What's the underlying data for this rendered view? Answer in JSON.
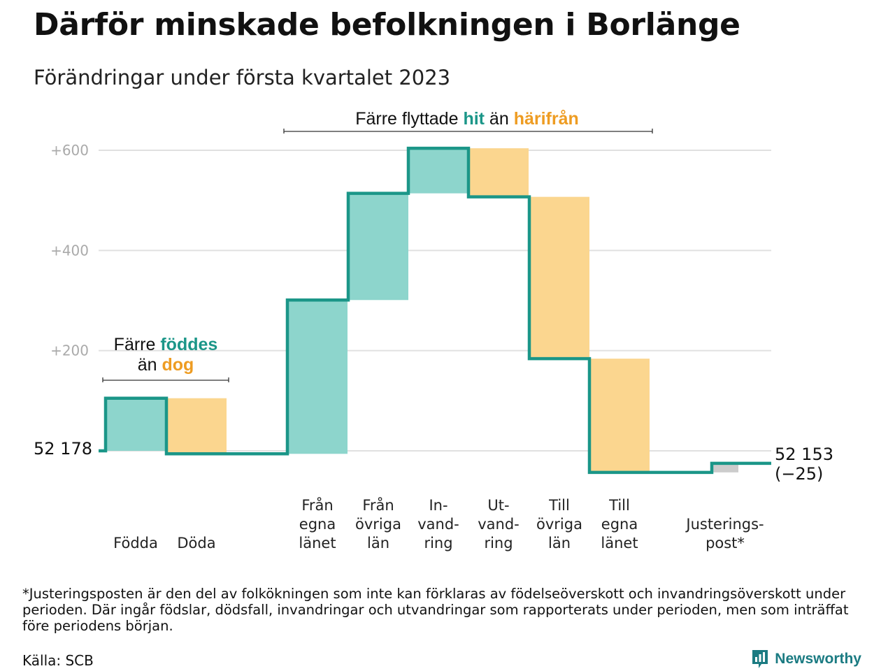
{
  "header": {
    "title": "Därför minskade befolkningen i Borlänge",
    "subtitle": "Förändringar under första kvartalet 2023"
  },
  "chart_data": {
    "type": "waterfall",
    "start": {
      "label": "52 178",
      "value": 52178
    },
    "end": {
      "label_value": "52 153",
      "label_change": "(−25)",
      "value": 52153,
      "change": -25
    },
    "y_ticks": [
      {
        "value": 200,
        "label": "+200"
      },
      {
        "value": 400,
        "label": "+400"
      },
      {
        "value": 600,
        "label": "+600"
      }
    ],
    "ylim": [
      -60,
      630
    ],
    "categories": [
      {
        "lines": [
          "Födda"
        ],
        "change": 105,
        "color": "inflow"
      },
      {
        "lines": [
          "Döda"
        ],
        "change": -111,
        "color": "outflow"
      },
      {
        "lines": [
          "Från",
          "egna",
          "länet"
        ],
        "change": 307,
        "color": "inflow"
      },
      {
        "lines": [
          "Från",
          "övriga",
          "län"
        ],
        "change": 213,
        "color": "inflow"
      },
      {
        "lines": [
          "In-",
          "vand-",
          "ring"
        ],
        "change": 90,
        "color": "inflow"
      },
      {
        "lines": [
          "Ut-",
          "vand-",
          "ring"
        ],
        "change": -97,
        "color": "outflow"
      },
      {
        "lines": [
          "Till",
          "övriga",
          "län"
        ],
        "change": -323,
        "color": "outflow"
      },
      {
        "lines": [
          "Till",
          "egna",
          "länet"
        ],
        "change": -227,
        "color": "outflow"
      },
      {
        "lines": [
          "Justerings-",
          "post*"
        ],
        "change": 18,
        "color": "adjustment"
      }
    ],
    "annotations": {
      "natural": {
        "line1_pre": "Färre ",
        "line1_hi": "föddes",
        "line2_pre": "än ",
        "line2_hi": "dog"
      },
      "migration": {
        "pre": "Färre flyttade ",
        "hi1": "hit",
        "mid": " än ",
        "hi2": "härifrån"
      }
    },
    "colors": {
      "inflow": "#8dd5cc",
      "outflow": "#fbd68f",
      "adjustment": "#cccccc",
      "line": "#1b9688",
      "inflow_text": "#1b9688",
      "outflow_text": "#ee9c22",
      "grid": "#e0e0e0"
    }
  },
  "footnote": "*Justeringsposten är den del av folkökningen som inte kan förklaras av födelseöverskott och invandringsöverskott under perioden. Där ingår födslar, dödsfall, invandringar och utvandringar som rapporterats under perioden, men som inträffat före periodens början.",
  "source": "Källa: SCB",
  "brand": {
    "name": "Newsworthy",
    "icon": "newsworthy-chart-icon"
  }
}
